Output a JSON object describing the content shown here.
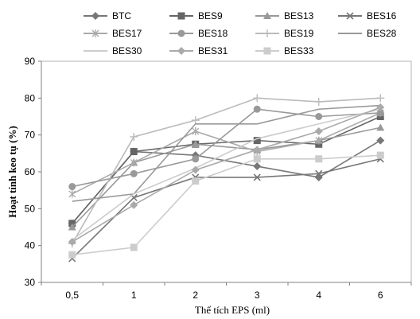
{
  "chart_data": {
    "type": "line",
    "title": "",
    "xlabel": "Thể tích EPS (ml)",
    "ylabel": "Hoạt tính keo tụ (%)",
    "categories": [
      "0,5",
      "1",
      "2",
      "3",
      "4",
      "6"
    ],
    "ylim": [
      30,
      90
    ],
    "yticks": [
      "30",
      "40",
      "50",
      "60",
      "70",
      "80",
      "90"
    ],
    "grid": false,
    "legend_position": "top",
    "series": [
      {
        "name": "BTC",
        "color": "#777777",
        "marker": "diamond",
        "values": [
          46,
          65.5,
          64.5,
          61.5,
          58.5,
          68.5
        ]
      },
      {
        "name": "BES9",
        "color": "#666666",
        "marker": "square",
        "values": [
          46,
          65.5,
          67.5,
          68.5,
          67.5,
          75
        ]
      },
      {
        "name": "BES13",
        "color": "#999999",
        "marker": "triangle",
        "values": [
          45,
          62.5,
          67.5,
          66,
          68.5,
          72
        ]
      },
      {
        "name": "BES16",
        "color": "#777777",
        "marker": "x",
        "values": [
          36.5,
          53,
          58.5,
          58.5,
          59.5,
          63.5
        ]
      },
      {
        "name": "BES17",
        "color": "#aaaaaa",
        "marker": "star",
        "values": [
          54,
          62.5,
          71,
          65.5,
          68.5,
          76
        ]
      },
      {
        "name": "BES18",
        "color": "#999999",
        "marker": "circle",
        "values": [
          56,
          59.5,
          63.5,
          77,
          75,
          76
        ]
      },
      {
        "name": "BES19",
        "color": "#bbbbbb",
        "marker": "plus",
        "values": [
          40.5,
          69.5,
          74,
          80,
          79,
          80
        ]
      },
      {
        "name": "BES28",
        "color": "#999999",
        "marker": "none",
        "values": [
          52,
          54,
          73,
          73,
          77,
          78
        ]
      },
      {
        "name": "BES30",
        "color": "#cccccc",
        "marker": "none",
        "values": [
          41.5,
          54,
          61,
          69,
          73,
          77
        ]
      },
      {
        "name": "BES31",
        "color": "#aaaaaa",
        "marker": "diamond",
        "values": [
          41,
          51,
          60.5,
          66,
          71,
          77.5
        ]
      },
      {
        "name": "BES33",
        "color": "#cccccc",
        "marker": "square",
        "values": [
          37.5,
          39.5,
          57.5,
          63.5,
          63.5,
          64.5
        ]
      }
    ]
  }
}
